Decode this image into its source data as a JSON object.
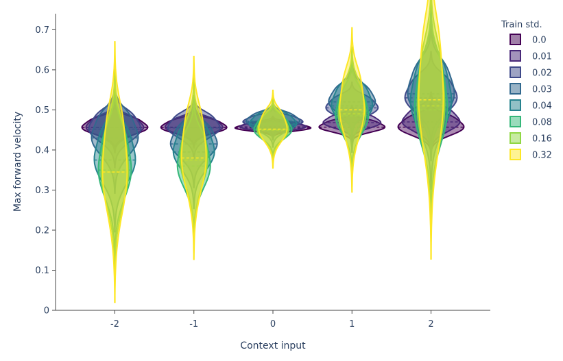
{
  "chart_data": {
    "type": "violin",
    "xlabel": "Context input",
    "ylabel": "Max forward velocity",
    "categories": [
      "-2",
      "-1",
      "0",
      "1",
      "2"
    ],
    "x_values": [
      -2,
      -1,
      0,
      1,
      2
    ],
    "xlim": [
      -2.75,
      2.75
    ],
    "ylim": [
      0,
      0.74
    ],
    "y_ticks": [
      "0",
      "0.1",
      "0.2",
      "0.3",
      "0.4",
      "0.5",
      "0.6",
      "0.7"
    ],
    "y_tick_values": [
      0,
      0.1,
      0.2,
      0.3,
      0.4,
      0.5,
      0.6,
      0.7
    ],
    "grid": false,
    "legend": {
      "title": "Train std.",
      "placement": "right"
    },
    "series": [
      {
        "name": "0.0",
        "color": "#440154",
        "medians": [
          0.456,
          0.456,
          0.455,
          0.457,
          0.457
        ]
      },
      {
        "name": "0.01",
        "color": "#482878",
        "medians": [
          0.456,
          0.457,
          0.458,
          0.468,
          0.47
        ]
      },
      {
        "name": "0.02",
        "color": "#3e4989",
        "medians": [
          0.452,
          0.455,
          0.47,
          0.505,
          0.53
        ]
      },
      {
        "name": "0.03",
        "color": "#31688e",
        "medians": [
          0.43,
          0.415,
          0.472,
          0.52,
          0.54
        ]
      },
      {
        "name": "0.04",
        "color": "#26828e",
        "medians": [
          0.375,
          0.395,
          0.465,
          0.51,
          0.52
        ]
      },
      {
        "name": "0.08",
        "color": "#35b779",
        "medians": [
          0.35,
          0.36,
          0.45,
          0.485,
          0.5
        ]
      },
      {
        "name": "0.16",
        "color": "#90d743",
        "medians": [
          0.345,
          0.375,
          0.45,
          0.49,
          0.51
        ]
      },
      {
        "name": "0.32",
        "color": "#fde725",
        "medians": [
          0.345,
          0.38,
          0.452,
          0.5,
          0.525
        ]
      }
    ]
  }
}
